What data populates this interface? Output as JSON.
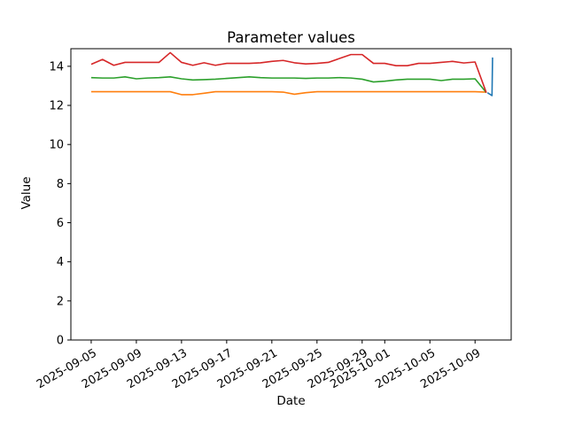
{
  "figure": {
    "background": "#ffffff",
    "axis_color": "#000000"
  },
  "chart_data": {
    "type": "line",
    "title": "Parameter values",
    "xlabel": "Date",
    "ylabel": "Value",
    "grid": false,
    "legend": "none",
    "x_unit": "day offset from 2025-09-05",
    "x_start_date": "2025-09-05",
    "xlim_days": [
      -1.8,
      37.2
    ],
    "ylim": [
      0,
      14.9
    ],
    "y_ticks": [
      0,
      2,
      4,
      6,
      8,
      10,
      12,
      14
    ],
    "y_tick_labels": [
      "0",
      "2",
      "4",
      "6",
      "8",
      "10",
      "12",
      "14"
    ],
    "x_tick_days": [
      0,
      4,
      8,
      12,
      16,
      20,
      24,
      26,
      30,
      34
    ],
    "x_tick_labels": [
      "2025-09-05",
      "2025-09-09",
      "2025-09-13",
      "2025-09-17",
      "2025-09-21",
      "2025-09-25",
      "2025-09-29",
      "2025-10-01",
      "2025-10-05",
      "2025-10-09"
    ],
    "series": [
      {
        "name": "orange",
        "color": "#ff7f0e",
        "x_days": [
          0,
          1,
          2,
          3,
          4,
          5,
          6,
          7,
          8,
          9,
          10,
          11,
          12,
          13,
          14,
          15,
          16,
          17,
          18,
          19,
          20,
          21,
          22,
          23,
          24,
          25,
          26,
          27,
          28,
          29,
          30,
          31,
          32,
          33,
          34,
          35
        ],
        "values": [
          12.7,
          12.7,
          12.7,
          12.7,
          12.7,
          12.7,
          12.7,
          12.7,
          12.55,
          12.55,
          12.62,
          12.7,
          12.7,
          12.7,
          12.7,
          12.7,
          12.7,
          12.68,
          12.57,
          12.65,
          12.7,
          12.7,
          12.7,
          12.7,
          12.7,
          12.7,
          12.7,
          12.7,
          12.7,
          12.7,
          12.7,
          12.7,
          12.7,
          12.7,
          12.7,
          12.68
        ]
      },
      {
        "name": "green",
        "color": "#2ca02c",
        "x_days": [
          0,
          1,
          2,
          3,
          4,
          5,
          6,
          7,
          8,
          9,
          10,
          11,
          12,
          13,
          14,
          15,
          16,
          17,
          18,
          19,
          20,
          21,
          22,
          23,
          24,
          25,
          26,
          27,
          28,
          29,
          30,
          31,
          32,
          33,
          34,
          35
        ],
        "values": [
          13.42,
          13.4,
          13.4,
          13.46,
          13.36,
          13.4,
          13.42,
          13.46,
          13.36,
          13.3,
          13.32,
          13.34,
          13.38,
          13.42,
          13.46,
          13.42,
          13.4,
          13.4,
          13.4,
          13.38,
          13.4,
          13.4,
          13.42,
          13.4,
          13.34,
          13.2,
          13.24,
          13.3,
          13.34,
          13.34,
          13.34,
          13.27,
          13.34,
          13.34,
          13.36,
          12.65
        ]
      },
      {
        "name": "red",
        "color": "#d62728",
        "x_days": [
          0,
          1,
          2,
          3,
          4,
          5,
          6,
          7,
          8,
          9,
          10,
          11,
          12,
          13,
          14,
          15,
          16,
          17,
          18,
          19,
          20,
          21,
          22,
          23,
          24,
          25,
          26,
          27,
          28,
          29,
          30,
          31,
          32,
          33,
          34,
          35
        ],
        "values": [
          14.1,
          14.35,
          14.05,
          14.2,
          14.2,
          14.2,
          14.2,
          14.7,
          14.2,
          14.05,
          14.18,
          14.05,
          14.15,
          14.15,
          14.15,
          14.18,
          14.25,
          14.3,
          14.18,
          14.12,
          14.15,
          14.2,
          14.4,
          14.6,
          14.6,
          14.15,
          14.15,
          14.03,
          14.03,
          14.15,
          14.15,
          14.2,
          14.25,
          14.17,
          14.22,
          12.65
        ]
      },
      {
        "name": "blue",
        "color": "#1f77b4",
        "x_days": [
          35.1,
          35.5,
          35.55
        ],
        "values": [
          12.65,
          12.5,
          14.45
        ]
      }
    ]
  }
}
